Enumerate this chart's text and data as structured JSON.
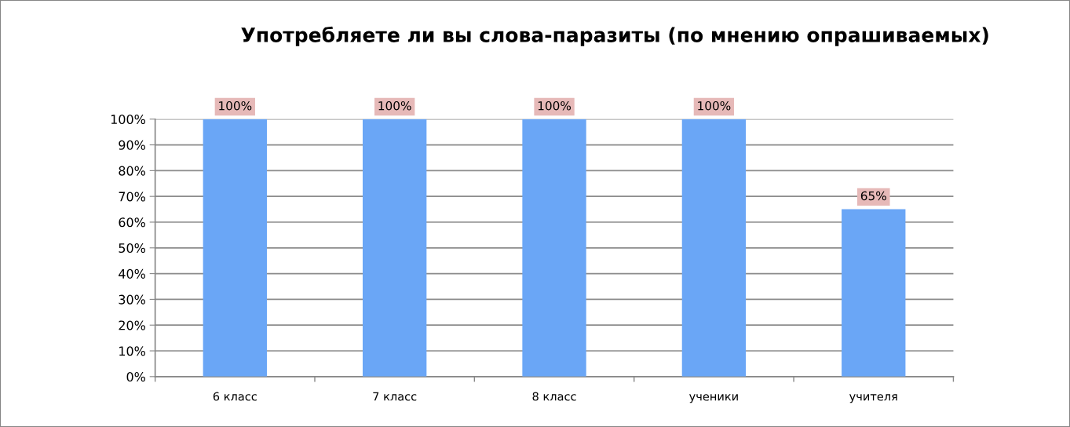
{
  "chart_data": {
    "type": "bar",
    "title": "Употребляете ли вы слова-паразиты (по мнению опрашиваемых)",
    "categories": [
      "6 класс",
      "7 класс",
      "8 класс",
      "ученики",
      "учителя"
    ],
    "values": [
      100,
      100,
      100,
      100,
      65
    ],
    "color": "#6aa6f6",
    "value_labels": [
      "100%",
      "100%",
      "100%",
      "100%",
      "65%"
    ],
    "ylim": [
      0,
      100
    ],
    "yticks": [
      {
        "value": 0,
        "label": "0%"
      },
      {
        "value": 10,
        "label": "10%"
      },
      {
        "value": 20,
        "label": "20%"
      },
      {
        "value": 30,
        "label": "30%"
      },
      {
        "value": 40,
        "label": "40%"
      },
      {
        "value": 50,
        "label": "50%"
      },
      {
        "value": 60,
        "label": "60%"
      },
      {
        "value": 70,
        "label": "70%"
      },
      {
        "value": 80,
        "label": "80%"
      },
      {
        "value": 90,
        "label": "90%"
      },
      {
        "value": 100,
        "label": "100%"
      }
    ],
    "grid": "y",
    "legend": false
  }
}
